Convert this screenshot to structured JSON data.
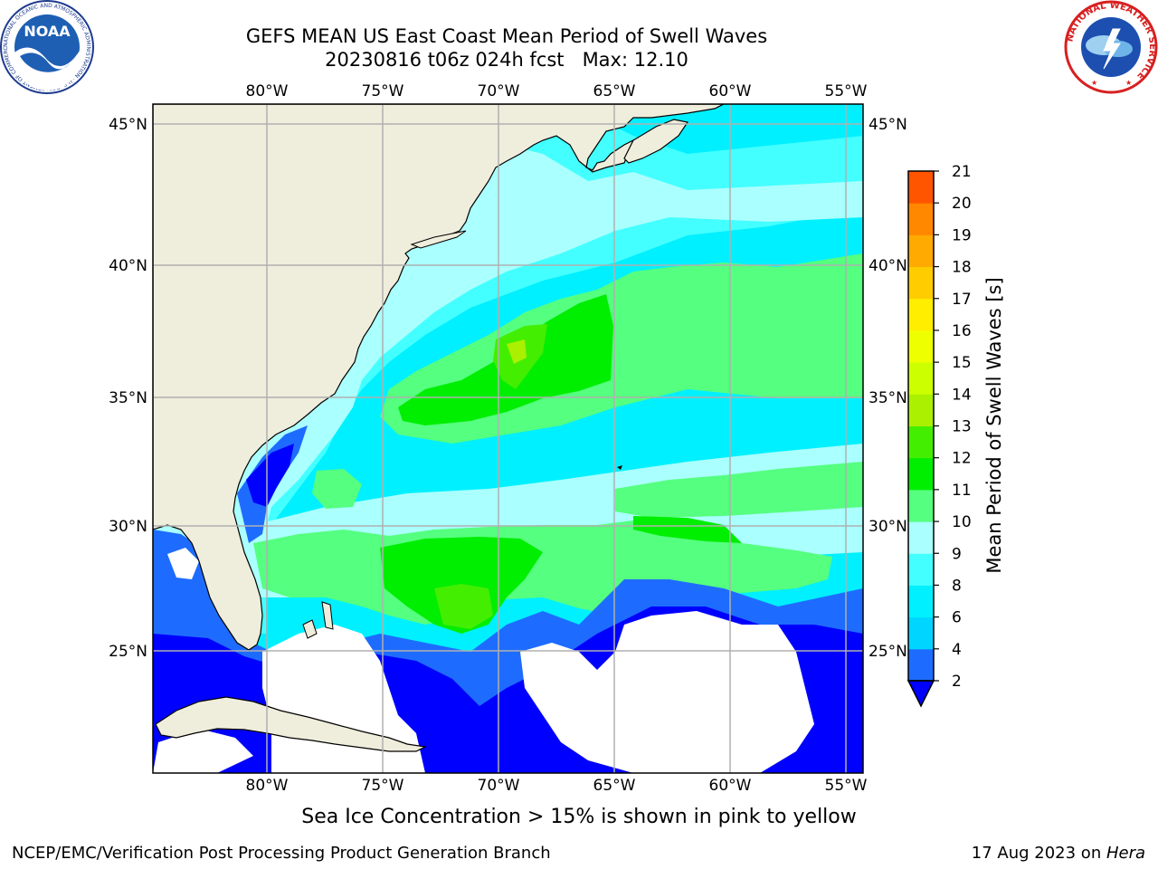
{
  "header": {
    "title_line1": "GEFS MEAN US East Coast Mean Period of Swell Waves",
    "title_line2": "20230816 t06z 024h fcst   Max: 12.10"
  },
  "logos": {
    "left": {
      "name": "noaa-logo",
      "text": "NOAA",
      "ring_text": "NATIONAL OCEANIC AND ATMOSPHERIC ADMINISTRATION · U.S. DEPARTMENT OF COMMERCE"
    },
    "right": {
      "name": "nws-logo",
      "ring_text": "NATIONAL WEATHER SERVICE"
    }
  },
  "map": {
    "lon_labels": [
      "80°W",
      "75°W",
      "70°W",
      "65°W",
      "60°W",
      "55°W"
    ],
    "lat_labels": [
      "45°N",
      "40°N",
      "35°N",
      "30°N",
      "25°N"
    ],
    "colors": {
      "land": "#efeddc",
      "no_data": "#ffffff",
      "grid": "#b0b0b0",
      "coast": "#000000"
    }
  },
  "colorbar": {
    "label": "Mean Period of Swell Waves [s]",
    "ticks": [
      "2",
      "4",
      "6",
      "8",
      "9",
      "10",
      "11",
      "12",
      "13",
      "14",
      "15",
      "16",
      "17",
      "18",
      "19",
      "20",
      "21"
    ],
    "colors": [
      "#1e6cff",
      "#00d5ff",
      "#00f0ff",
      "#44ffff",
      "#aaffff",
      "#55ff7f",
      "#00ee00",
      "#44ee00",
      "#aaf000",
      "#ccff00",
      "#eeff00",
      "#ffee00",
      "#ffcc00",
      "#ffaa00",
      "#ff8800",
      "#ff5500",
      "#ff2200",
      "#ff0000"
    ],
    "under_color": "#0000ff"
  },
  "footer": {
    "note": "Sea Ice Concentration > 15% is shown in pink to yellow",
    "credit_left": "NCEP/EMC/Verification Post Processing Product Generation Branch",
    "credit_date": "17 Aug 2023 on ",
    "credit_host": "Hera"
  }
}
